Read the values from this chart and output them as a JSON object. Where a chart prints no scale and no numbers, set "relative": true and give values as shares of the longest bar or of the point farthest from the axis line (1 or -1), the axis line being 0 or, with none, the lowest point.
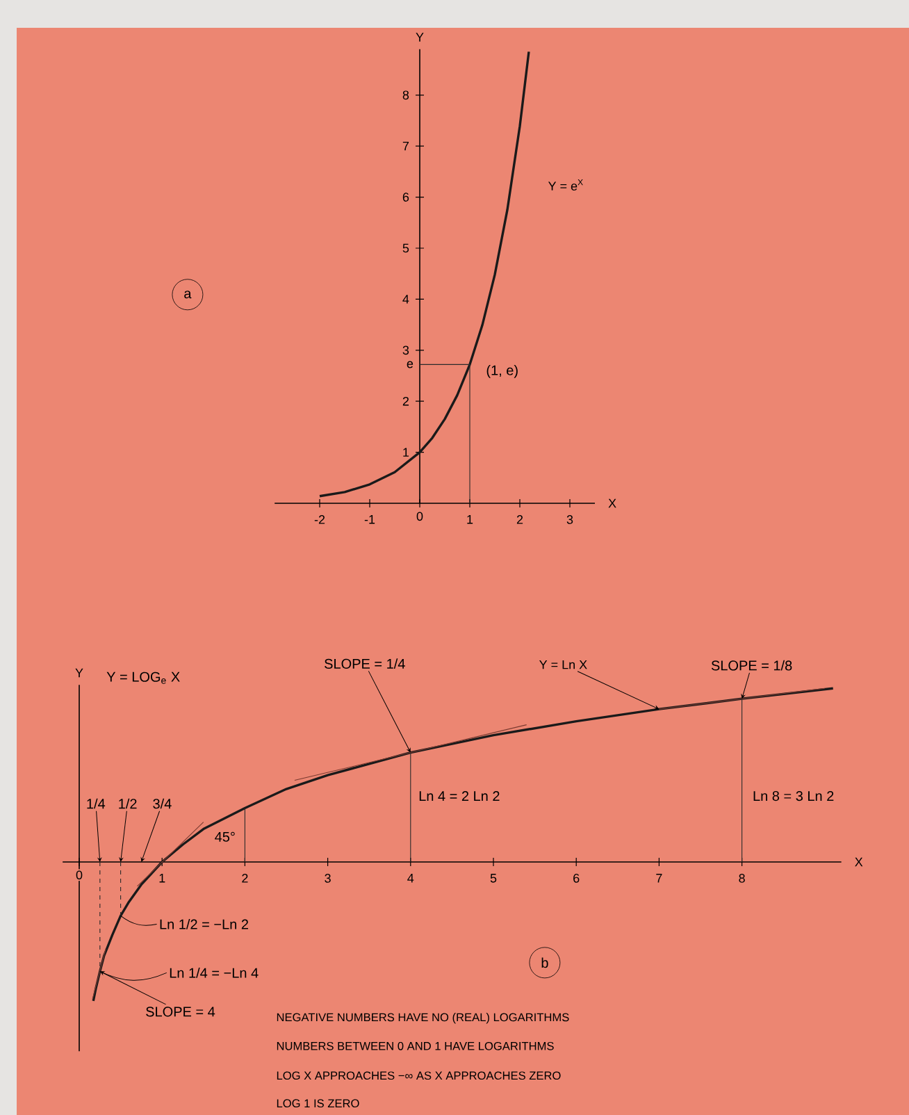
{
  "chart_data": [
    {
      "type": "line",
      "xlabel": "X",
      "ylabel": "Y",
      "xlim": [
        -2.9,
        3.5
      ],
      "ylim": [
        0,
        8.9
      ],
      "xticks": [
        -2,
        -1,
        0,
        1,
        2,
        3
      ],
      "yticks": [
        1,
        2,
        3,
        4,
        5,
        6,
        7,
        8,
        {
          "value": 2.718,
          "label": "e"
        }
      ],
      "series": [
        {
          "name": "Y = e$^{X}$",
          "color": "#1a1a1a",
          "x": [
            -2,
            -1.5,
            -1,
            -0.5,
            0,
            0.25,
            0.5,
            0.75,
            1,
            1.25,
            1.5,
            1.75,
            2,
            2.18
          ],
          "values": [
            0.14,
            0.22,
            0.37,
            0.61,
            1,
            1.28,
            1.65,
            2.12,
            2.72,
            3.49,
            4.48,
            5.75,
            7.39,
            8.85
          ]
        },
        {
          "color": "#2a2a2a",
          "x": [
            0,
            1,
            1
          ],
          "values": [
            2.72,
            2.72,
            0
          ]
        }
      ],
      "annotations": [
        "a",
        {
          "text": "(1, e)",
          "x": 1,
          "y": 2.72
        }
      ]
    },
    {
      "type": "line",
      "relative": true,
      "xlabel": "X",
      "ylabel": "Y",
      "xlim": [
        -0.2,
        9.2
      ],
      "xticks": [
        0,
        1,
        2,
        3,
        4,
        5,
        6,
        7,
        8
      ],
      "series": [
        {
          "name": "Y = Ln X",
          "color": "#1a1a1a",
          "x": [
            0.17,
            0.2,
            0.25,
            0.3,
            0.4,
            0.5,
            0.6,
            0.75,
            1,
            1.25,
            1.5,
            2,
            2.5,
            3,
            4,
            5,
            6,
            7,
            8,
            9.1
          ],
          "values": [
            -0.8,
            -0.73,
            -0.63,
            -0.54,
            -0.42,
            -0.31,
            -0.23,
            -0.13,
            0,
            0.1,
            0.19,
            0.31,
            0.42,
            0.5,
            0.63,
            0.73,
            0.81,
            0.88,
            0.94,
            1
          ]
        },
        {
          "color": "#2a2a2a",
          "x": [
            2,
            2
          ],
          "values": [
            0,
            0.31
          ]
        },
        {
          "color": "#2a2a2a",
          "x": [
            4,
            4
          ],
          "values": [
            0,
            0.63
          ]
        },
        {
          "color": "#2a2a2a",
          "x": [
            8,
            8
          ],
          "values": [
            0,
            0.94
          ]
        },
        {
          "color": "#2a2a2a",
          "x": [
            0.25,
            0.25
          ],
          "values": [
            0,
            -0.63
          ],
          "line_style": "dashed"
        },
        {
          "color": "#2a2a2a",
          "x": [
            0.5,
            0.5
          ],
          "values": [
            0,
            -0.31
          ],
          "line_style": "dashed"
        },
        {
          "color": "#7a3a30",
          "x": [
            2.6,
            5.4
          ],
          "values": [
            0.47,
            0.79
          ]
        },
        {
          "color": "#7a3a30",
          "x": [
            7,
            9
          ],
          "values": [
            0.88,
            1.0
          ]
        },
        {
          "color": "#7a3a30",
          "x": [
            0.7,
            1.5
          ],
          "values": [
            -0.14,
            0.23
          ]
        },
        {
          "color": "#7a3a30",
          "x": [
            0.16,
            0.32
          ],
          "values": [
            -0.79,
            -0.5
          ]
        }
      ],
      "annotations": [
        "Y = LOG$_{e}$ X",
        {
          "text": "SLOPE = 1/4",
          "x": 4,
          "y": 0.63
        },
        {
          "text": "SLOPE = 1/8",
          "x": 8,
          "y": 0.94
        },
        {
          "text": "Ln 4 = 2 Ln 2",
          "x": 4,
          "y": 0.38
        },
        {
          "text": "Ln 8 = 3 Ln 2",
          "x": 8,
          "y": 0.38
        },
        "45°",
        {
          "text": "1/4",
          "x": 0.25,
          "y": 0
        },
        {
          "text": "1/2",
          "x": 0.5,
          "y": 0
        },
        {
          "text": "3/4",
          "x": 0.75,
          "y": 0
        },
        {
          "text": "Ln 1/2 = −Ln 2",
          "x": 0.5,
          "y": -0.31
        },
        {
          "text": "Ln 1/4 = −Ln 4",
          "x": 0.25,
          "y": -0.63
        },
        {
          "text": "SLOPE = 4",
          "x": 0.25,
          "y": -0.63
        },
        "b",
        "NEGATIVE NUMBERS HAVE NO (REAL) LOGARITHMS",
        "NUMBERS BETWEEN 0 AND 1 HAVE LOGARITHMS",
        "LOG X APPROACHES −∞ AS X APPROACHES ZERO",
        "LOG 1 IS ZERO"
      ]
    }
  ]
}
